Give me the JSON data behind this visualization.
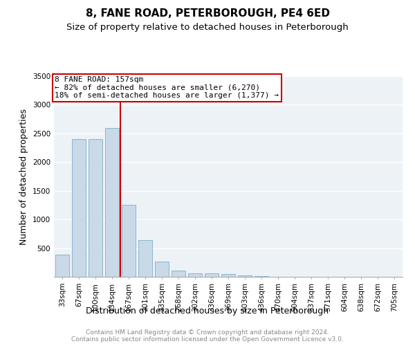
{
  "title": "8, FANE ROAD, PETERBOROUGH, PE4 6ED",
  "subtitle": "Size of property relative to detached houses in Peterborough",
  "xlabel": "Distribution of detached houses by size in Peterborough",
  "ylabel": "Number of detached properties",
  "categories": [
    "33sqm",
    "67sqm",
    "100sqm",
    "134sqm",
    "167sqm",
    "201sqm",
    "235sqm",
    "268sqm",
    "302sqm",
    "336sqm",
    "369sqm",
    "403sqm",
    "436sqm",
    "470sqm",
    "504sqm",
    "537sqm",
    "571sqm",
    "604sqm",
    "638sqm",
    "672sqm",
    "705sqm"
  ],
  "values": [
    390,
    2400,
    2400,
    2600,
    1250,
    640,
    260,
    110,
    60,
    55,
    50,
    30,
    10,
    5,
    3,
    2,
    1,
    0,
    0,
    0,
    0
  ],
  "bar_color": "#c9d9e8",
  "bar_edge_color": "#7aafc8",
  "background_color": "#edf2f7",
  "grid_color": "#ffffff",
  "vline_color": "#cc0000",
  "annotation_line1": "8 FANE ROAD: 157sqm",
  "annotation_line2": "← 82% of detached houses are smaller (6,270)",
  "annotation_line3": "18% of semi-detached houses are larger (1,377) →",
  "annotation_box_color": "#cc0000",
  "ylim": [
    0,
    3500
  ],
  "yticks": [
    0,
    500,
    1000,
    1500,
    2000,
    2500,
    3000,
    3500
  ],
  "footer_text": "Contains HM Land Registry data © Crown copyright and database right 2024.\nContains public sector information licensed under the Open Government Licence v3.0.",
  "title_fontsize": 11,
  "subtitle_fontsize": 9.5,
  "ylabel_fontsize": 9,
  "xlabel_fontsize": 9,
  "tick_fontsize": 7.5,
  "annotation_fontsize": 8,
  "footer_fontsize": 6.5
}
